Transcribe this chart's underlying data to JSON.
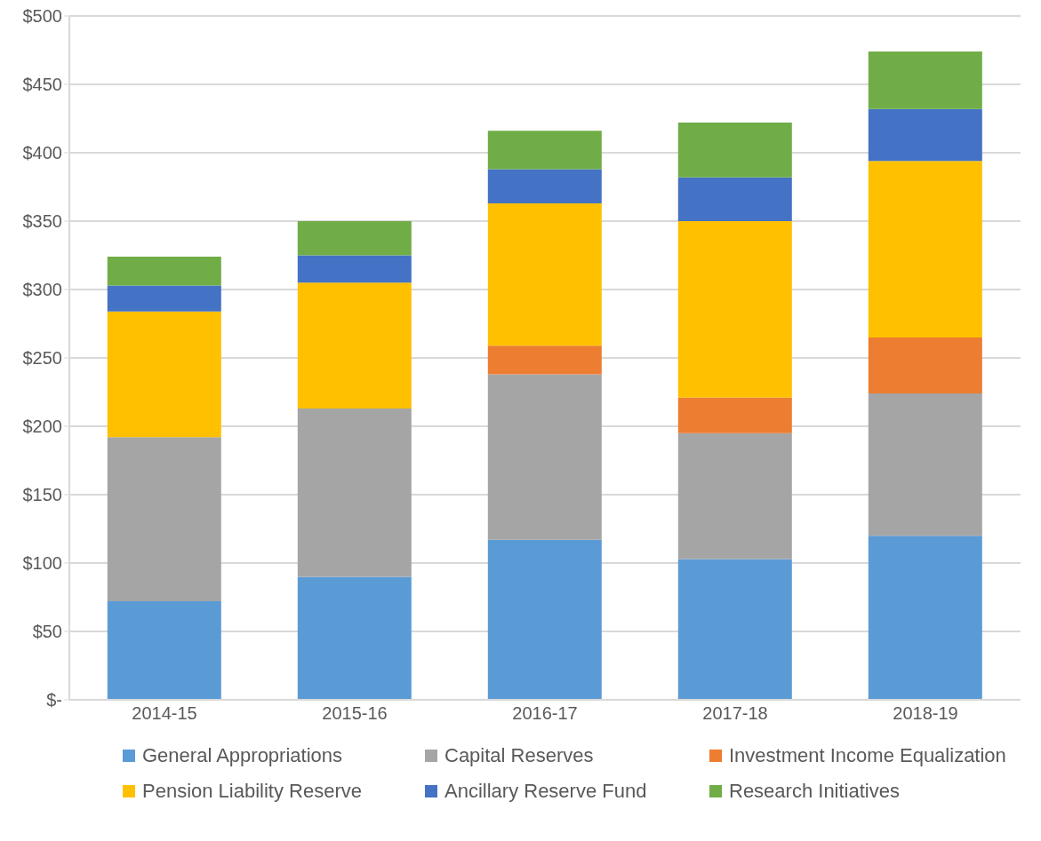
{
  "chart_data": {
    "type": "bar",
    "stacked": true,
    "categories": [
      "2014-15",
      "2015-16",
      "2016-17",
      "2017-18",
      "2018-19"
    ],
    "series": [
      {
        "name": "General Appropriations",
        "color": "#5b9bd5",
        "values": [
          72,
          90,
          117,
          103,
          120
        ]
      },
      {
        "name": "Capital Reserves",
        "color": "#a5a5a5",
        "values": [
          120,
          123,
          121,
          92,
          104
        ]
      },
      {
        "name": "Investment Income Equalization",
        "color": "#ed7d31",
        "values": [
          0,
          0,
          21,
          26,
          41
        ]
      },
      {
        "name": "Pension Liability Reserve",
        "color": "#ffc000",
        "values": [
          92,
          92,
          104,
          129,
          129
        ]
      },
      {
        "name": "Ancillary Reserve Fund",
        "color": "#4472c4",
        "values": [
          19,
          20,
          25,
          32,
          38
        ]
      },
      {
        "name": "Research Initiatives",
        "color": "#70ad47",
        "values": [
          21,
          25,
          28,
          40,
          42
        ]
      }
    ],
    "ylim": [
      0,
      500
    ],
    "yticks": [
      {
        "value": 0,
        "label": "$-"
      },
      {
        "value": 50,
        "label": "$50"
      },
      {
        "value": 100,
        "label": "$100"
      },
      {
        "value": 150,
        "label": "$150"
      },
      {
        "value": 200,
        "label": "$200"
      },
      {
        "value": 250,
        "label": "$250"
      },
      {
        "value": 300,
        "label": "$300"
      },
      {
        "value": 350,
        "label": "$350"
      },
      {
        "value": 400,
        "label": "$400"
      },
      {
        "value": 450,
        "label": "$450"
      },
      {
        "value": 500,
        "label": "$500"
      }
    ],
    "grid": "y",
    "legend": "bottom"
  }
}
